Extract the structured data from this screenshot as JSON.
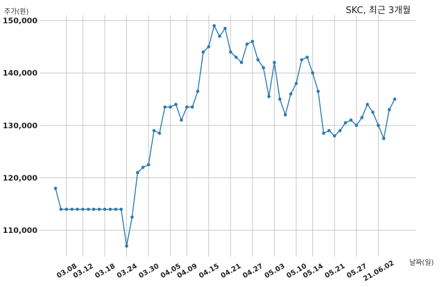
{
  "chart_data": {
    "type": "line",
    "title": "SKC, 최근 3개월",
    "ylabel": "주가(원)",
    "xlabel": "날짜(일)",
    "ylim": [
      105000,
      151000
    ],
    "yticks": [
      110000,
      120000,
      130000,
      140000,
      150000
    ],
    "ytick_labels": [
      "110,000",
      "120,000",
      "130,000",
      "140,000",
      "150,000"
    ],
    "xtick_labels": [
      "03.08",
      "03.12",
      "03.18",
      "03.24",
      "03.30",
      "04.05",
      "04.09",
      "04.15",
      "04.21",
      "04.27",
      "05.03",
      "05.10",
      "05.14",
      "05.21",
      "05.27",
      "21.06.02"
    ],
    "xtick_index": [
      2,
      5,
      9,
      13,
      17,
      21,
      24,
      28,
      32,
      36,
      40,
      44,
      47,
      51,
      55,
      59
    ],
    "grid": true,
    "line_color": "#2a7ab0",
    "series": [
      {
        "values": [
          118000,
          114000,
          114000,
          114000,
          114000,
          114000,
          114000,
          114000,
          114000,
          114000,
          114000,
          114000,
          114000,
          107000,
          112500,
          121000,
          122000,
          122500,
          129000,
          128500,
          133500,
          133500,
          134000,
          131000,
          133500,
          133500,
          136500,
          144000,
          145000,
          149000,
          147000,
          148500,
          144000,
          143000,
          142000,
          145500,
          146000,
          142500,
          141000,
          135500,
          142000,
          135000,
          132000,
          136000,
          138000,
          142500,
          143000,
          140000,
          136500,
          128500,
          129000,
          128000,
          129000,
          130500,
          131000,
          130000,
          131500,
          134000,
          132500,
          130000,
          127500,
          133000,
          135000
        ]
      }
    ]
  }
}
